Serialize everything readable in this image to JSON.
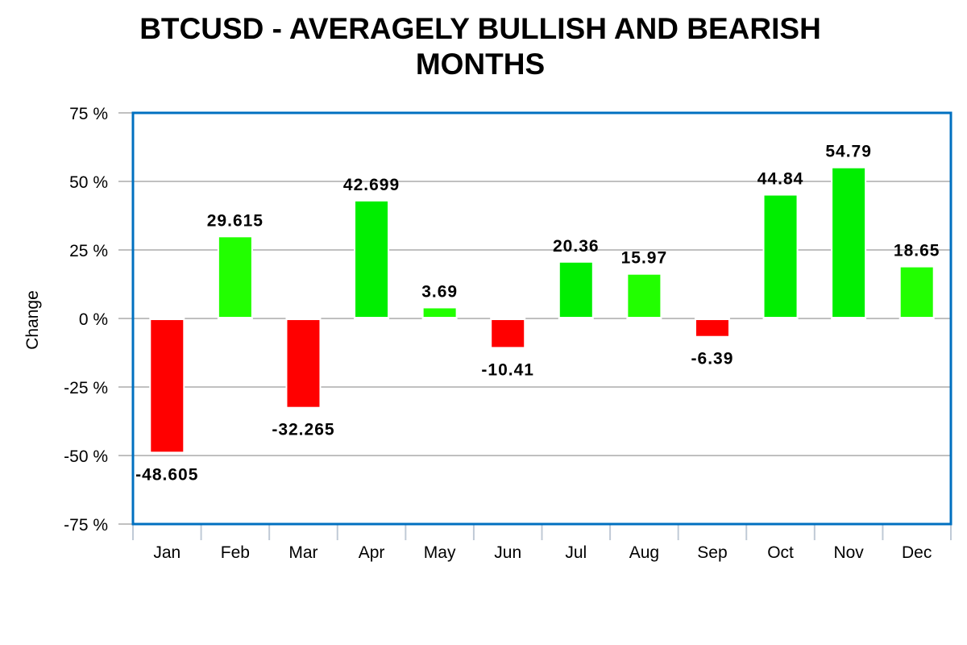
{
  "chart_data": {
    "type": "bar",
    "title_lines": [
      "BTCUSD - AVERAGELY BULLISH AND BEARISH",
      "MONTHS"
    ],
    "xlabel": "",
    "ylabel": "Change",
    "categories": [
      "Jan",
      "Feb",
      "Mar",
      "Apr",
      "May",
      "Jun",
      "Jul",
      "Aug",
      "Sep",
      "Oct",
      "Nov",
      "Dec"
    ],
    "values": [
      -48.605,
      29.615,
      -32.265,
      42.699,
      3.69,
      -10.41,
      20.36,
      15.97,
      -6.39,
      44.84,
      54.79,
      18.65
    ],
    "data_labels": [
      "-48.605",
      "29.615",
      "-32.265",
      "42.699",
      "3.69",
      "-10.41",
      "20.36",
      "15.97",
      "-6.39",
      "44.84",
      "54.79",
      "18.65"
    ],
    "ylim": [
      -75,
      75
    ],
    "yticks": [
      75,
      50,
      25,
      0,
      -25,
      -50,
      -75
    ],
    "ytick_labels": [
      "75 %",
      "50 %",
      "25 %",
      "0 %",
      "-25 %",
      "-50 %",
      "-75 %"
    ],
    "grid": true,
    "legend": "none",
    "colors": {
      "negative": "#ff0000",
      "positive": [
        "#22ff00",
        "#00ee00"
      ],
      "positive_by_month": [
        "",
        "#22ff00",
        "",
        "#00ee00",
        "#22ff00",
        "",
        "#00ee00",
        "#22ff00",
        "",
        "#00ee00",
        "#00ee00",
        "#22ff00"
      ],
      "frame": "#0070c0",
      "grid": "#c0c0c0"
    }
  }
}
